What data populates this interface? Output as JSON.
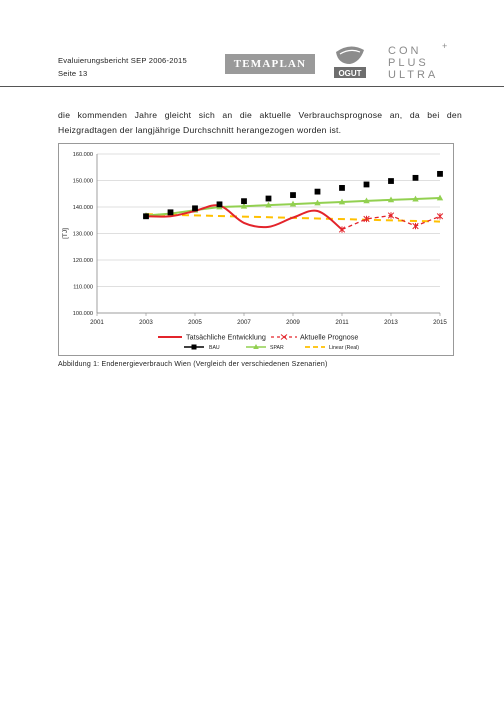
{
  "header": {
    "report_title": "Evaluierungsbericht SEP 2006-2015",
    "page_label": "Seite 13",
    "temaplan_logo": "TEMAPLAN",
    "ogut_logo": "OGUT",
    "conplus_logo": [
      "CON",
      "PLUS",
      "ULTRA"
    ]
  },
  "body": {
    "paragraph": "die kommenden Jahre gleicht sich an die aktuelle Verbrauchsprognose an, da bei den Heizgradtagen der langjährige Durchschnitt herangezogen worden ist."
  },
  "figure": {
    "caption": "Abbildung 1: Endenergieverbrauch Wien (Vergleich der verschiedenen Szenarien)"
  },
  "chart_data": {
    "type": "line",
    "ylabel": "[TJ]",
    "xlim": [
      2001,
      2015
    ],
    "ylim": [
      100000,
      160000
    ],
    "x_ticks": [
      "2001",
      "2003",
      "2005",
      "2007",
      "2009",
      "2011",
      "2013",
      "2015"
    ],
    "y_ticks": [
      "100.000",
      "110.000",
      "120.000",
      "130.000",
      "140.000",
      "150.000",
      "160.000"
    ],
    "grid": "horizontal",
    "legend_position": "bottom",
    "series": [
      {
        "key": "bau",
        "name": "BAU",
        "color": "#000000",
        "style": "square-markers",
        "x": [
          2003,
          2004,
          2005,
          2006,
          2007,
          2008,
          2009,
          2010,
          2011,
          2012,
          2013,
          2014,
          2015
        ],
        "values": [
          136500,
          138000,
          139500,
          141000,
          142200,
          143200,
          144500,
          145800,
          147200,
          148500,
          149800,
          151000,
          152500
        ]
      },
      {
        "key": "spar",
        "name": "SPAR",
        "color": "#92d050",
        "style": "line-triangle-markers",
        "x": [
          2003,
          2004,
          2005,
          2006,
          2007,
          2008,
          2009,
          2010,
          2011,
          2012,
          2013,
          2014,
          2015
        ],
        "values": [
          136800,
          137500,
          138800,
          140000,
          140300,
          140700,
          141100,
          141500,
          141900,
          142300,
          142700,
          143000,
          143400
        ]
      },
      {
        "key": "real",
        "name": "Tatsächliche Entwicklung",
        "color": "#e3242b",
        "style": "solid",
        "x": [
          2003,
          2004,
          2005,
          2006,
          2007,
          2008,
          2009,
          2010,
          2011
        ],
        "values": [
          136500,
          136500,
          138500,
          140500,
          134000,
          132500,
          136000,
          138500,
          131500
        ]
      },
      {
        "key": "prognose",
        "name": "Aktuelle Prognose",
        "color": "#e3242b",
        "style": "dashed-x",
        "x": [
          2011,
          2012,
          2013,
          2014,
          2015
        ],
        "values": [
          131500,
          135500,
          136800,
          132800,
          136500
        ]
      },
      {
        "key": "linear",
        "name": "Linear (Real)",
        "color": "#ffc000",
        "style": "dashed",
        "x": [
          2003,
          2015
        ],
        "values": [
          137300,
          134500
        ]
      }
    ]
  }
}
